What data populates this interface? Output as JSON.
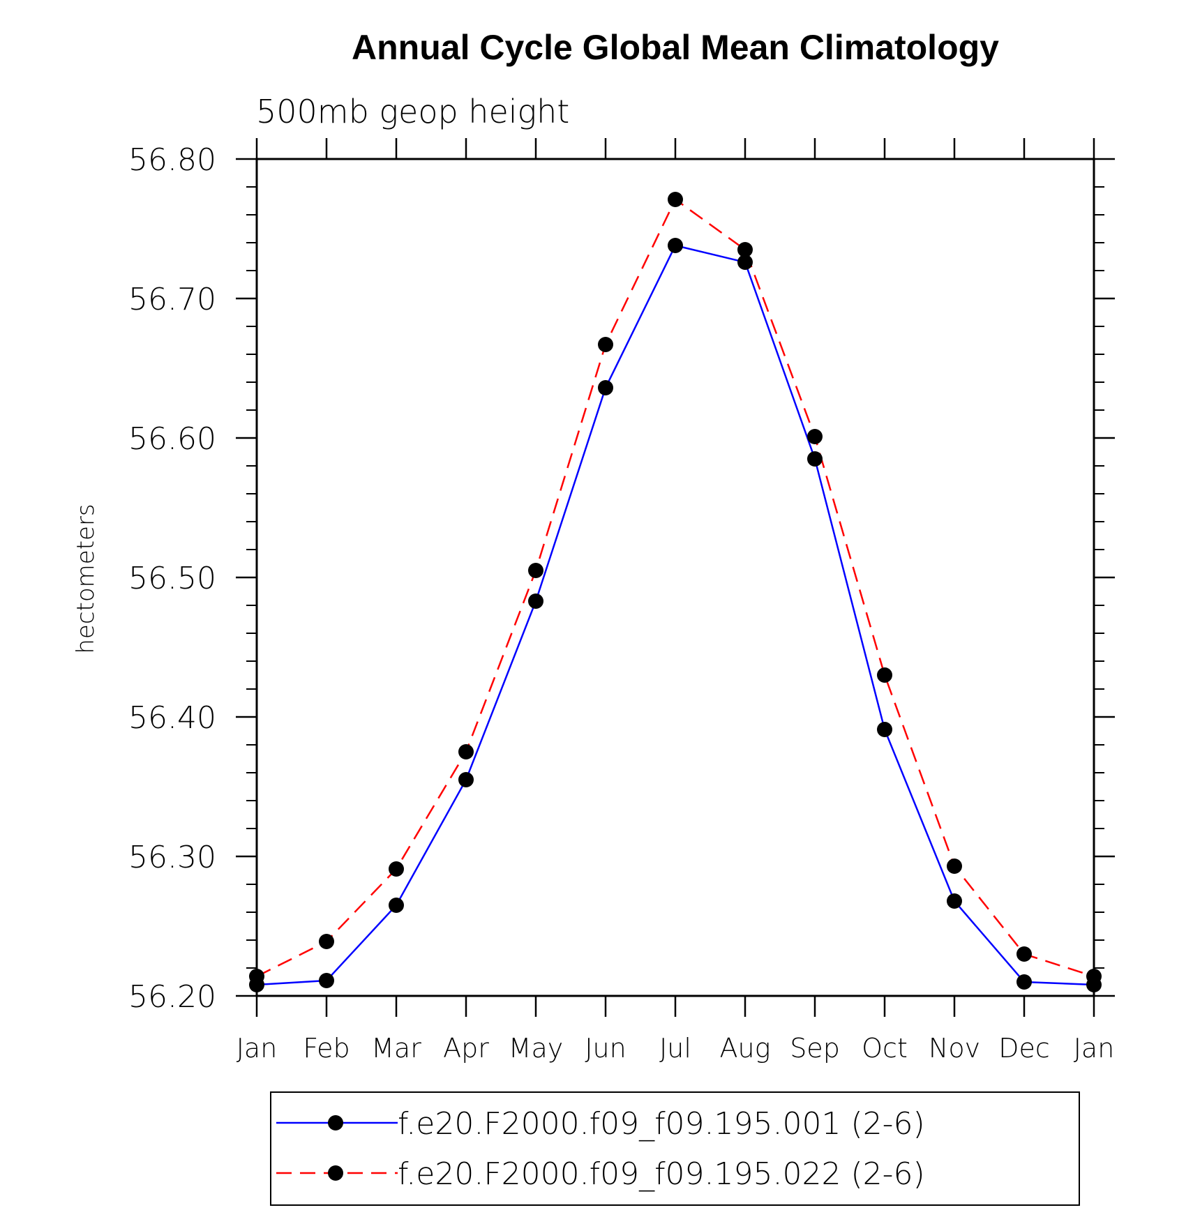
{
  "chart_data": {
    "type": "line",
    "title": "Annual Cycle Global Mean Climatology",
    "subtitle": "500mb geop height",
    "xlabel": "",
    "ylabel": "hectometers",
    "categories": [
      "Jan",
      "Feb",
      "Mar",
      "Apr",
      "May",
      "Jun",
      "Jul",
      "Aug",
      "Sep",
      "Oct",
      "Nov",
      "Dec",
      "Jan"
    ],
    "ylim": [
      56.2,
      56.8
    ],
    "yticks": [
      56.2,
      56.3,
      56.4,
      56.5,
      56.6,
      56.7,
      56.8
    ],
    "ytick_labels": [
      "56.20",
      "56.30",
      "56.40",
      "56.50",
      "56.60",
      "56.70",
      "56.80"
    ],
    "grid": false,
    "legend_position": "bottom",
    "series": [
      {
        "name": "f.e20.F2000.f09_f09.195.001 (2-6)",
        "color": "#0000ff",
        "line_style": "solid",
        "marker": "circle",
        "values": [
          56.208,
          56.211,
          56.265,
          56.355,
          56.483,
          56.636,
          56.738,
          56.726,
          56.585,
          56.391,
          56.268,
          56.21,
          56.208
        ]
      },
      {
        "name": "f.e20.F2000.f09_f09.195.022 (2-6)",
        "color": "#ff0000",
        "line_style": "dashed",
        "marker": "circle",
        "values": [
          56.214,
          56.239,
          56.291,
          56.375,
          56.505,
          56.667,
          56.771,
          56.735,
          56.601,
          56.43,
          56.293,
          56.23,
          56.214
        ]
      }
    ]
  }
}
